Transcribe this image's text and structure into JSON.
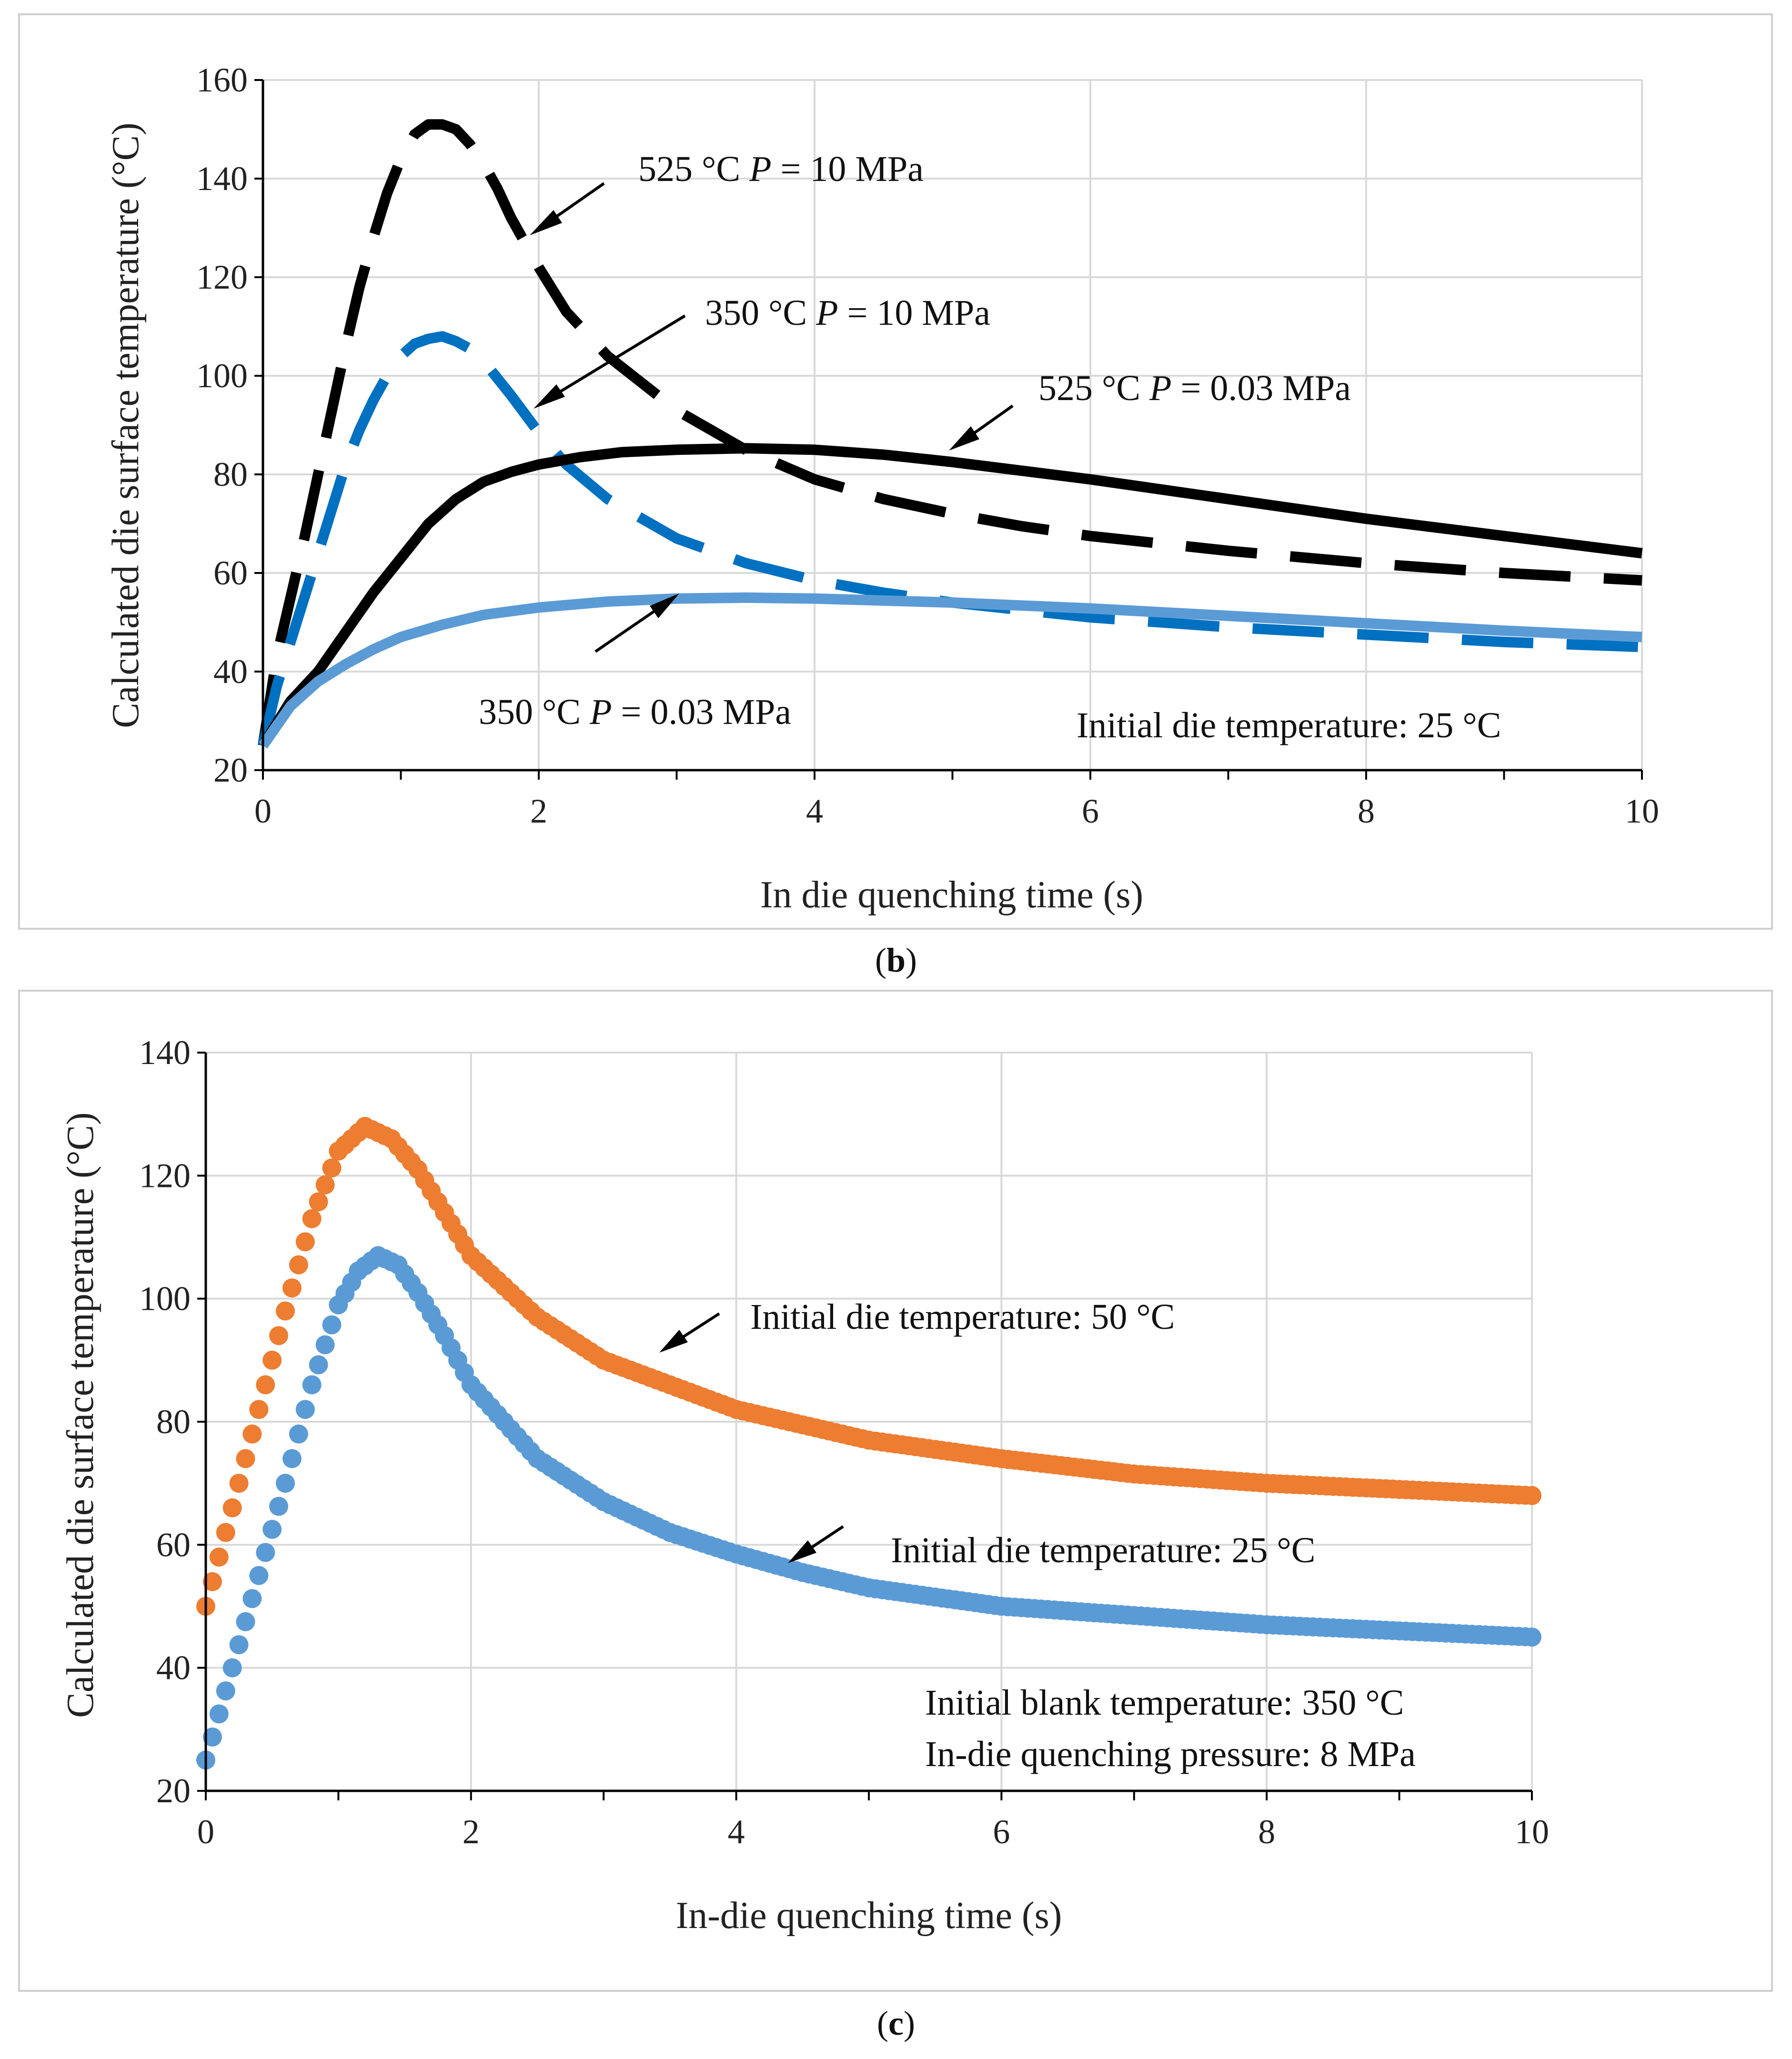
{
  "figure": {
    "panel_b_label": "(b)",
    "panel_c_label": "(c)"
  },
  "chart_data": [
    {
      "type": "line",
      "panel": "b",
      "xlabel": "In die quenching time (s)",
      "ylabel": "Calculated die surface temperature (°C)",
      "xlim": [
        0,
        10
      ],
      "ylim": [
        20,
        160
      ],
      "xticks": [
        0,
        2,
        4,
        6,
        8,
        10
      ],
      "yticks": [
        20,
        40,
        60,
        80,
        100,
        120,
        140,
        160
      ],
      "grid": true,
      "note": "Initial die temperature: 25 °C",
      "series": [
        {
          "name": "525 °C P = 10 MPa",
          "color": "#000000",
          "style": "dashed",
          "x": [
            0,
            0.1,
            0.2,
            0.3,
            0.4,
            0.5,
            0.6,
            0.7,
            0.8,
            0.9,
            1.0,
            1.1,
            1.2,
            1.3,
            1.4,
            1.5,
            1.6,
            1.7,
            1.8,
            2.0,
            2.2,
            2.5,
            3.0,
            3.5,
            4.0,
            4.5,
            5.0,
            5.5,
            6.0,
            7.0,
            8.0,
            9.0,
            10.0
          ],
          "y": [
            25,
            43,
            55,
            67,
            80,
            93,
            106,
            118,
            128,
            137,
            144,
            149,
            151,
            151,
            150,
            147,
            143,
            138,
            132,
            122,
            113,
            104,
            93,
            85,
            79,
            75,
            72,
            69.5,
            67.5,
            64.5,
            62,
            60,
            58.5
          ]
        },
        {
          "name": "350 °C P = 10 MPa",
          "color": "#0070c0",
          "style": "dashed",
          "x": [
            0,
            0.1,
            0.2,
            0.3,
            0.4,
            0.5,
            0.6,
            0.7,
            0.8,
            0.9,
            1.0,
            1.1,
            1.2,
            1.3,
            1.4,
            1.5,
            1.6,
            1.7,
            1.8,
            2.0,
            2.2,
            2.5,
            3.0,
            3.5,
            4.0,
            4.5,
            5.0,
            6.0,
            7.0,
            8.0,
            9.0,
            10.0
          ],
          "y": [
            25,
            37,
            46,
            55,
            64,
            73,
            82,
            89,
            95,
            100,
            104,
            106.5,
            107.5,
            108,
            107,
            105.5,
            103,
            99.5,
            96,
            88.5,
            82,
            75,
            67,
            62,
            58.5,
            56,
            54,
            51,
            49,
            47.5,
            46,
            45
          ]
        },
        {
          "name": "525 °C P = 0.03 MPa",
          "color": "#000000",
          "style": "solid",
          "x": [
            0,
            0.2,
            0.4,
            0.6,
            0.8,
            1.0,
            1.2,
            1.4,
            1.6,
            1.8,
            2.0,
            2.3,
            2.6,
            3.0,
            3.5,
            4.0,
            4.5,
            5.0,
            6.0,
            7.0,
            8.0,
            9.0,
            10.0
          ],
          "y": [
            25,
            34,
            40,
            48,
            56,
            63,
            70,
            75,
            78.5,
            80.5,
            82,
            83.5,
            84.5,
            85,
            85.3,
            85,
            84,
            82.5,
            79,
            75,
            71,
            67.5,
            64
          ]
        },
        {
          "name": "350 °C P = 0.03 MPa",
          "color": "#5b9bd5",
          "style": "solid",
          "x": [
            0,
            0.2,
            0.4,
            0.6,
            0.8,
            1.0,
            1.3,
            1.6,
            2.0,
            2.5,
            3.0,
            3.5,
            4.0,
            5.0,
            6.0,
            7.0,
            8.0,
            9.0,
            10.0
          ],
          "y": [
            25,
            33,
            38,
            41.5,
            44.5,
            47,
            49.5,
            51.5,
            53,
            54.2,
            54.8,
            55,
            54.8,
            54,
            52.8,
            51.3,
            49.8,
            48.3,
            47
          ]
        }
      ],
      "annotations": [
        {
          "text": "525 °C ",
          "italic": "P",
          "rest": " = 10 MPa"
        },
        {
          "text": "350 °C ",
          "italic": "P",
          "rest": " = 10 MPa"
        },
        {
          "text": "525 °C ",
          "italic": "P",
          "rest": " = 0.03 MPa"
        },
        {
          "text": "350 °C ",
          "italic": "P",
          "rest": " = 0.03 MPa"
        }
      ]
    },
    {
      "type": "scatter",
      "panel": "c",
      "xlabel": "In-die quenching time (s)",
      "ylabel": "Calculated die surface temperature (°C)",
      "xlim": [
        0,
        10
      ],
      "ylim": [
        20,
        140
      ],
      "xticks": [
        0,
        2,
        4,
        6,
        8,
        10
      ],
      "yticks": [
        20,
        40,
        60,
        80,
        100,
        120,
        140
      ],
      "grid": true,
      "notes": [
        "Initial blank temperature: 350 °C",
        "In-die quenching pressure: 8 MPa"
      ],
      "series": [
        {
          "name": "Initial die temperature: 50 °C",
          "color": "#ed7d31",
          "x": [
            0,
            0.2,
            0.4,
            0.6,
            0.8,
            1.0,
            1.2,
            1.4,
            1.6,
            1.8,
            2.0,
            2.5,
            3.0,
            3.5,
            4.0,
            4.5,
            5.0,
            6.0,
            7.0,
            8.0,
            9.0,
            10.0
          ],
          "y": [
            50,
            66,
            82,
            98,
            113,
            124,
            128,
            126,
            121,
            114,
            107,
            97,
            90,
            86,
            82,
            79.5,
            77,
            74,
            71.5,
            70,
            69,
            68
          ]
        },
        {
          "name": "Initial die temperature: 25 °C",
          "color": "#5b9bd5",
          "x": [
            0,
            0.2,
            0.4,
            0.6,
            0.8,
            1.0,
            1.15,
            1.3,
            1.45,
            1.6,
            1.8,
            2.0,
            2.5,
            3.0,
            3.5,
            4.0,
            4.5,
            5.0,
            6.0,
            7.0,
            8.0,
            9.0,
            10.0
          ],
          "y": [
            25,
            40,
            55,
            70,
            86,
            99,
            104.5,
            107,
            105.5,
            101,
            94,
            86,
            74,
            67,
            62,
            58.5,
            55.5,
            53,
            50,
            48.5,
            47,
            46,
            45
          ]
        }
      ]
    }
  ]
}
